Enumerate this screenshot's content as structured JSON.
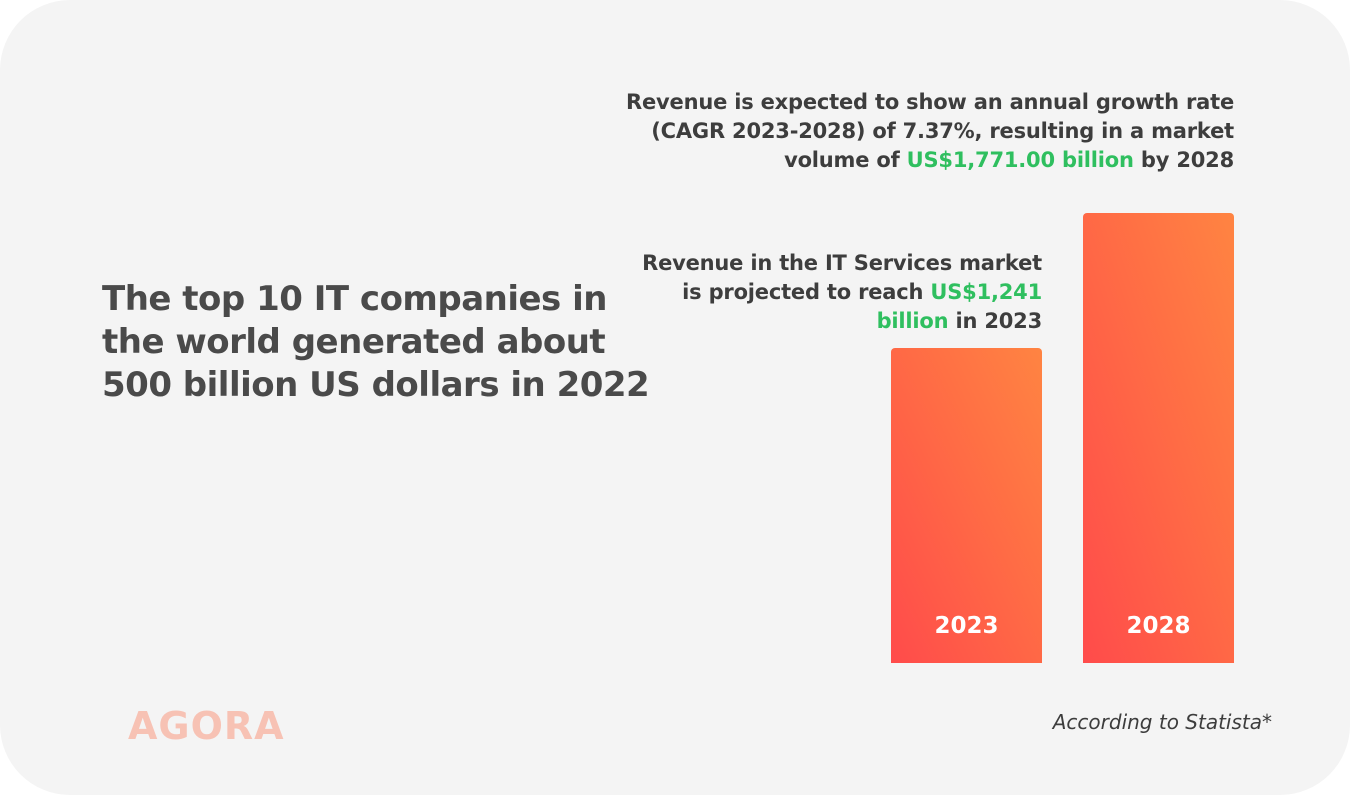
{
  "headline": "The top 10 IT companies in the world generated about 500 billion US dollars in 2022",
  "notes": {
    "n2028": {
      "before": "Revenue is expected to show an annual growth rate (CAGR 2023-2028) of 7.37%, resulting in a market volume of ",
      "highlight": "US$1,771.00 billion",
      "after": " by 2028"
    },
    "n2023": {
      "before": "Revenue in the IT Services market is projected to reach ",
      "highlight": "US$1,241 billion",
      "after": " in 2023"
    }
  },
  "logo": "AGORA",
  "source": "According to Statista*",
  "colors": {
    "highlight": "#2fbf5f",
    "bar_bottom": "#ff4b4b",
    "bar_top": "#ff8442",
    "logo": "#f7c2b4",
    "background": "#f4f4f4"
  },
  "chart_data": {
    "type": "bar",
    "categories": [
      "2023",
      "2028"
    ],
    "values": [
      1241,
      1771
    ],
    "unit": "US$ billion",
    "ylim": [
      0,
      1771
    ],
    "grid": false
  }
}
